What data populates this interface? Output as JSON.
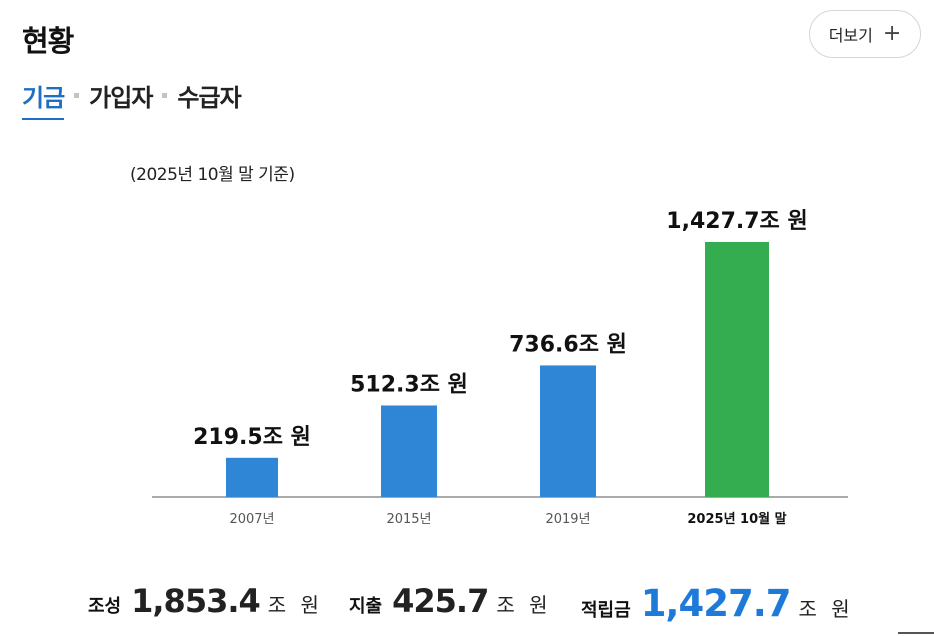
{
  "header": {
    "title": "현황",
    "more_label": "더보기",
    "more_icon": "plus-icon"
  },
  "tabs": [
    {
      "label": "기금",
      "active": true
    },
    {
      "label": "가입자",
      "active": false
    },
    {
      "label": "수급자",
      "active": false
    }
  ],
  "note": "(2025년 10월 말 기준)",
  "chart_data": {
    "type": "bar",
    "categories": [
      "2007년",
      "2015년",
      "2019년",
      "2025년 10월 말"
    ],
    "values": [
      219.5,
      512.3,
      736.6,
      1427.7
    ],
    "value_labels": [
      "219.5조 원",
      "512.3조 원",
      "736.6조 원",
      "1,427.7조 원"
    ],
    "unit": "조 원",
    "ylim": [
      0,
      1427.7
    ],
    "grid": false,
    "legend": "none",
    "colors": [
      "#2f86d6",
      "#2f86d6",
      "#2f86d6",
      "#34ad50"
    ],
    "highlight_index": 3
  },
  "summary": [
    {
      "label": "조성",
      "value": "1,853.4",
      "unit": "조 원",
      "highlight": false
    },
    {
      "label": "지출",
      "value": "425.7",
      "unit": "조 원",
      "highlight": false
    },
    {
      "label": "적립금",
      "value": "1,427.7",
      "unit": "조 원",
      "highlight": true
    }
  ],
  "colors": {
    "accent": "#1e6fc4",
    "highlight_value": "#1e7ad8",
    "bar_blue": "#2f86d6",
    "bar_green": "#34ad50",
    "axis": "#aaaaaa"
  }
}
